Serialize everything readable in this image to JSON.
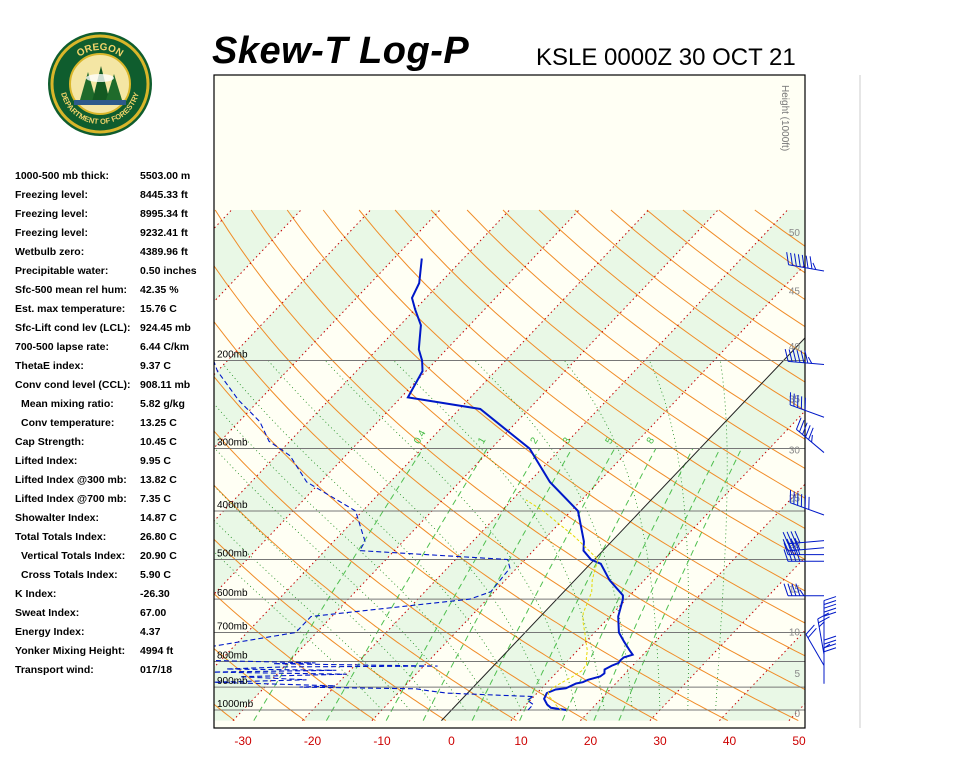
{
  "header": {
    "title": "Skew-T Log-P",
    "station_time": "KSLE 0000Z 30 OCT 21"
  },
  "logo": {
    "top_text": "OREGON",
    "bottom_text": "DEPARTMENT OF FORESTRY"
  },
  "indices": [
    {
      "label": "1000-500 mb thick:",
      "value": "5503.00 m",
      "indent": false
    },
    {
      "label": "Freezing level:",
      "value": "8445.33 ft",
      "indent": false
    },
    {
      "label": "Freezing level:",
      "value": "8995.34 ft",
      "indent": false
    },
    {
      "label": "Freezing level:",
      "value": "9232.41 ft",
      "indent": false
    },
    {
      "label": "Wetbulb zero:",
      "value": "4389.96 ft",
      "indent": false
    },
    {
      "label": "Precipitable water:",
      "value": "0.50 inches",
      "indent": false
    },
    {
      "label": "Sfc-500 mean rel hum:",
      "value": "42.35 %",
      "indent": false
    },
    {
      "label": "Est. max temperature:",
      "value": "15.76 C",
      "indent": false
    },
    {
      "label": "Sfc-Lift cond lev (LCL):",
      "value": "924.45 mb",
      "indent": false
    },
    {
      "label": "700-500 lapse rate:",
      "value": "6.44 C/km",
      "indent": false
    },
    {
      "label": "ThetaE index:",
      "value": "9.37 C",
      "indent": false
    },
    {
      "label": "Conv cond level (CCL):",
      "value": "908.11 mb",
      "indent": false
    },
    {
      "label": "Mean mixing ratio:",
      "value": "5.82 g/kg",
      "indent": true
    },
    {
      "label": "Conv temperature:",
      "value": "13.25 C",
      "indent": true
    },
    {
      "label": "Cap Strength:",
      "value": "10.45 C",
      "indent": false
    },
    {
      "label": "Lifted Index:",
      "value": "9.95 C",
      "indent": false
    },
    {
      "label": "Lifted Index @300 mb:",
      "value": "13.82 C",
      "indent": false
    },
    {
      "label": "Lifted Index @700 mb:",
      "value": "7.35 C",
      "indent": false
    },
    {
      "label": "Showalter Index:",
      "value": "14.87 C",
      "indent": false
    },
    {
      "label": "Total Totals Index:",
      "value": "26.80 C",
      "indent": false
    },
    {
      "label": "Vertical Totals Index:",
      "value": "20.90 C",
      "indent": true
    },
    {
      "label": "Cross Totals Index:",
      "value": "5.90 C",
      "indent": true
    },
    {
      "label": "K Index:",
      "value": "-26.30",
      "indent": false
    },
    {
      "label": "Sweat Index:",
      "value": "67.00",
      "indent": false
    },
    {
      "label": "Energy Index:",
      "value": "4.37",
      "indent": false
    },
    {
      "label": "Yonker Mixing Height:",
      "value": "4994 ft",
      "indent": false
    },
    {
      "label": "Transport wind:",
      "value": "017/18",
      "indent": false
    }
  ],
  "chart_data": {
    "type": "line",
    "xlim": [
      -30,
      50
    ],
    "x_ticks": [
      "-30",
      "-20",
      "-10",
      "0",
      "10",
      "20",
      "30",
      "40",
      "50"
    ],
    "pressure_levels": [
      1000,
      900,
      800,
      700,
      600,
      500,
      400,
      300,
      200
    ],
    "pressure_labels": [
      "1000mb",
      "900mb",
      "800mb",
      "700mb",
      "600mb",
      "500mb",
      "400mb",
      "300mb",
      "200mb"
    ],
    "height_axis_label": "Height (1000ft)",
    "height_ticks": [
      "0",
      "5",
      "10",
      "15",
      "20",
      "25",
      "30",
      "35",
      "40",
      "45",
      "50"
    ],
    "mixing_ratio_labels": [
      "0.4",
      "1",
      "2",
      "3",
      "5",
      "8"
    ],
    "series": [
      {
        "kind": "temperature",
        "color": "#0018c8",
        "points": [
          [
            16.5,
            1000
          ],
          [
            14,
            990
          ],
          [
            13,
            975
          ],
          [
            11.8,
            950
          ],
          [
            11.4,
            925
          ],
          [
            12.2,
            910
          ],
          [
            13.5,
            905
          ],
          [
            14.3,
            885
          ],
          [
            15.1,
            880
          ],
          [
            15.5,
            870
          ],
          [
            16.8,
            857
          ],
          [
            17.0,
            845
          ],
          [
            16.5,
            830
          ],
          [
            17.0,
            815
          ],
          [
            17.6,
            805
          ],
          [
            17.5,
            795
          ],
          [
            17.6,
            785
          ],
          [
            18.5,
            775
          ],
          [
            17.5,
            760
          ],
          [
            16.5,
            745
          ],
          [
            15.5,
            730
          ],
          [
            13.5,
            700
          ],
          [
            11.2,
            650
          ],
          [
            9.5,
            600
          ],
          [
            9.0,
            590
          ],
          [
            5.0,
            550
          ],
          [
            1.5,
            510
          ],
          [
            -0.5,
            500
          ],
          [
            -2.8,
            480
          ],
          [
            -4.0,
            460
          ],
          [
            -9.0,
            400
          ],
          [
            -17.0,
            350
          ],
          [
            -24.5,
            300
          ],
          [
            -37.0,
            250
          ],
          [
            -49.0,
            237
          ],
          [
            -50.5,
            210
          ],
          [
            -52,
            200
          ],
          [
            -54,
            190
          ],
          [
            -57,
            170
          ],
          [
            -60,
            158
          ],
          [
            -62,
            150
          ],
          [
            -63,
            140
          ],
          [
            -66,
            125
          ]
        ]
      },
      {
        "kind": "dewpoint",
        "color": "#0018c8",
        "points": [
          [
            11,
            1000
          ],
          [
            11,
            975
          ],
          [
            9.5,
            955
          ],
          [
            10,
            940
          ],
          [
            -3,
            925
          ],
          [
            -6,
            915
          ],
          [
            -8,
            907
          ],
          [
            -25,
            900
          ],
          [
            -20,
            895
          ],
          [
            -38,
            880
          ],
          [
            -25,
            870
          ],
          [
            -35,
            858
          ],
          [
            -20,
            848
          ],
          [
            -40,
            840
          ],
          [
            -22,
            833
          ],
          [
            -38,
            828
          ],
          [
            -30,
            820
          ],
          [
            -8,
            817
          ],
          [
            -32,
            808
          ],
          [
            -26,
            805
          ],
          [
            -38,
            798
          ],
          [
            -50,
            790
          ],
          [
            -46,
            760
          ],
          [
            -33,
            700
          ],
          [
            -33,
            650
          ],
          [
            -12.5,
            600
          ],
          [
            -10.5,
            580
          ],
          [
            -11,
            520
          ],
          [
            -12.5,
            500
          ],
          [
            -35,
            480
          ],
          [
            -35.5,
            460
          ],
          [
            -41,
            400
          ],
          [
            -52,
            350
          ],
          [
            -58,
            310
          ],
          [
            -63,
            290
          ],
          [
            -67,
            265
          ],
          [
            -73,
            240
          ],
          [
            -80,
            210
          ],
          [
            -82,
            200
          ],
          [
            -86,
            175
          ],
          [
            -92,
            150
          ],
          [
            -96,
            130
          ]
        ]
      },
      {
        "kind": "parcel",
        "color": "#e8d800",
        "points": [
          [
            15.8,
            1000
          ],
          [
            14.5,
            980
          ],
          [
            13.5,
            960
          ],
          [
            12.2,
            940
          ],
          [
            11.6,
            925
          ],
          [
            11.5,
            905
          ],
          [
            12.0,
            885
          ],
          [
            12.8,
            860
          ],
          [
            13.4,
            835
          ],
          [
            13.2,
            810
          ],
          [
            12.4,
            790
          ],
          [
            11.4,
            760
          ],
          [
            10.0,
            730
          ],
          [
            8.6,
            700
          ],
          [
            6.8,
            665
          ],
          [
            5.7,
            640
          ],
          [
            4.9,
            610
          ],
          [
            4.0,
            580
          ],
          [
            2.5,
            550
          ],
          [
            1.3,
            520
          ],
          [
            0.5,
            500
          ],
          [
            -2,
            480
          ],
          [
            -6,
            450
          ],
          [
            -14,
            400
          ],
          [
            -18,
            380
          ]
        ]
      }
    ]
  },
  "wind_barbs": [
    {
      "pressure": 130,
      "direction": 280,
      "speed": 75
    },
    {
      "pressure": 200,
      "direction": 275,
      "speed": 65
    },
    {
      "pressure": 255,
      "direction": 290,
      "speed": 50
    },
    {
      "pressure": 300,
      "direction": 310,
      "speed": 55
    },
    {
      "pressure": 400,
      "direction": 290,
      "speed": 60
    },
    {
      "pressure": 450,
      "direction": 265,
      "speed": 40
    },
    {
      "pressure": 465,
      "direction": 265,
      "speed": 40
    },
    {
      "pressure": 480,
      "direction": 270,
      "speed": 40
    },
    {
      "pressure": 495,
      "direction": 270,
      "speed": 40
    },
    {
      "pressure": 580,
      "direction": 270,
      "speed": 45
    },
    {
      "pressure": 700,
      "direction": 360,
      "speed": 20
    },
    {
      "pressure": 725,
      "direction": 360,
      "speed": 30
    },
    {
      "pressure": 760,
      "direction": 350,
      "speed": 25
    },
    {
      "pressure": 800,
      "direction": 330,
      "speed": 20
    },
    {
      "pressure": 840,
      "direction": 360,
      "speed": 25
    },
    {
      "pressure": 870,
      "direction": 0,
      "speed": 20
    }
  ]
}
